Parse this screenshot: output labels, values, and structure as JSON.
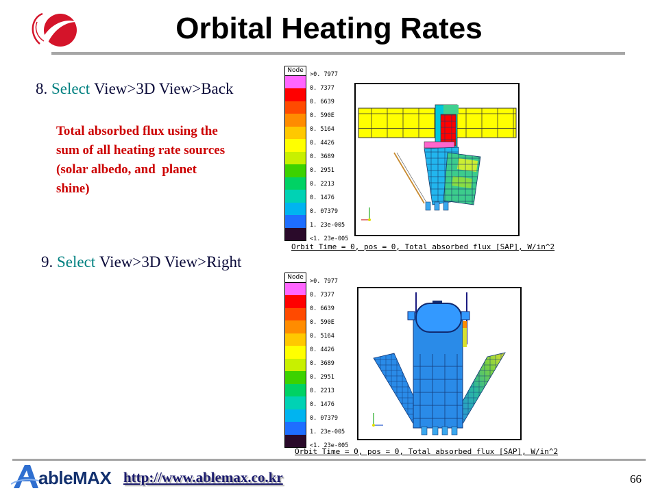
{
  "header": {
    "title": "Orbital Heating Rates"
  },
  "steps": {
    "back": {
      "number": "8.",
      "action": "Select",
      "menu_path": "View>3D View>Back"
    },
    "right": {
      "number": "9.",
      "action": "Select",
      "menu_path": "View>3D View>Right"
    }
  },
  "note": {
    "lines": [
      "Total absorbed flux using the",
      "sum of all heating rate sources",
      "(solar albedo, and  planet",
      "shine)"
    ]
  },
  "screenshots": [
    {
      "view": "Back",
      "legend_header": "Node",
      "caption": "Orbit Time = 0, pos = 0, Total absorbed flux [SAP], W/in^2"
    },
    {
      "view": "Right",
      "legend_header": "Node",
      "caption": "Orbit Time = 0, pos = 0, Total absorbed flux [SAP], W/in^2"
    }
  ],
  "legend": {
    "labels": [
      ">0. 7977",
      "0. 7377",
      "0. 6639",
      "0. 590E",
      "0. 5164",
      "0. 4426",
      "0. 3689",
      "0. 2951",
      "0. 2213",
      "0. 1476",
      "0. 07379",
      "1. 23e-005",
      "<1. 23e-005"
    ],
    "colors": [
      "#ff66ff",
      "#ff0000",
      "#ff4a00",
      "#ff8c00",
      "#ffc800",
      "#ffff00",
      "#c8f000",
      "#3cd200",
      "#00d264",
      "#00d2b4",
      "#00b4f0",
      "#1e6eff",
      "#2a0a2a"
    ]
  },
  "footer": {
    "logo_text": "ableMAX",
    "url": "http://www.ablemax.co.kr",
    "page_number": "66"
  },
  "colors": {
    "title_rule": "#a6a6a6",
    "step_accent": "#008080",
    "note_text": "#cc0000",
    "url_text": "#1c1c6e"
  }
}
